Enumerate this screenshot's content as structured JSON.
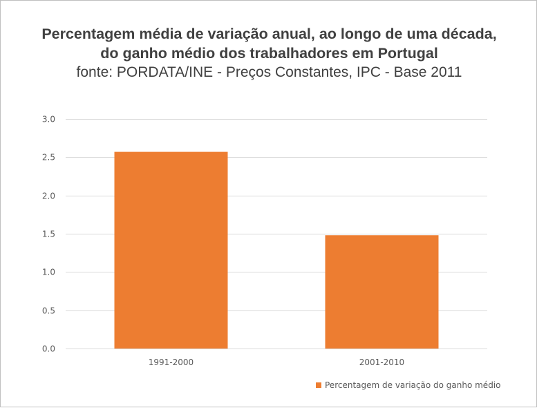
{
  "chart_data": {
    "type": "bar",
    "title": "Percentagem média de variação anual, ao longo de uma década,",
    "title_line2": "do ganho médio dos trabalhadores em Portugal",
    "subtitle": "fonte: PORDATA/INE - Preços Constantes, IPC - Base 2011",
    "categories": [
      "1991-2000",
      "2001-2010"
    ],
    "series": [
      {
        "name": "Percentagem de variação do ganho médio",
        "values": [
          2.57,
          1.48
        ],
        "color": "#ED7D31"
      }
    ],
    "xlabel": "",
    "ylabel": "",
    "ylim": [
      0,
      3.0
    ],
    "yticks": [
      "0.0",
      "0.5",
      "1.0",
      "1.5",
      "2.0",
      "2.5",
      "3.0"
    ],
    "grid": true,
    "grid_color": "#d9d9d9",
    "legend": "bottom-right"
  }
}
